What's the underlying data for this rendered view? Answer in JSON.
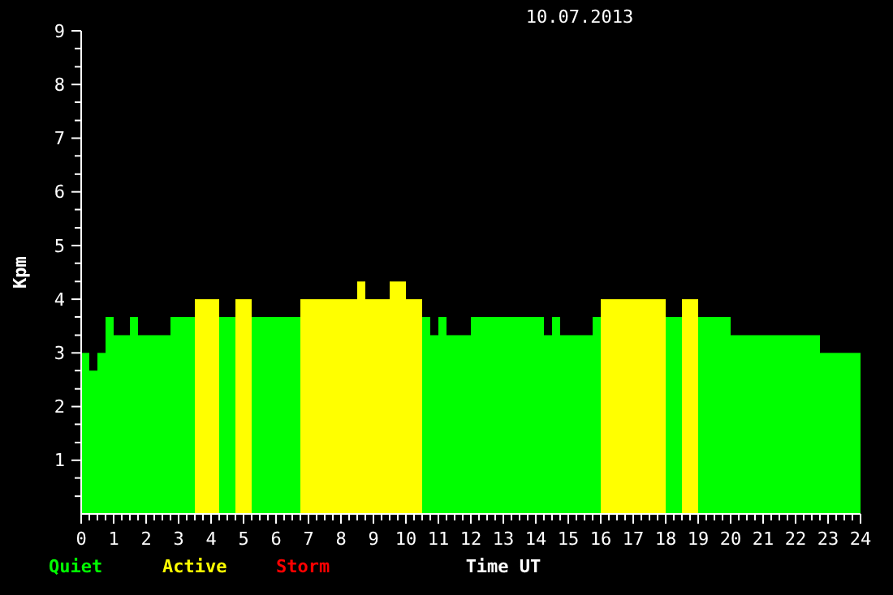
{
  "chart_data": {
    "type": "histogram",
    "title": "10.07.2013",
    "xlabel": "Time UT",
    "ylabel": "Kpm",
    "bins": [
      0,
      0.25,
      0.5,
      0.75,
      1,
      1.5,
      1.75,
      2.75,
      3.5,
      4.25,
      4.75,
      5.25,
      6.75,
      8.5,
      8.75,
      9.5,
      10,
      10.5,
      10.75,
      11,
      11.25,
      12,
      14.25,
      14.5,
      14.75,
      15.75,
      16,
      18,
      18.5,
      19,
      20,
      22.75,
      24
    ],
    "series": [
      {
        "name": "Quiet",
        "color": "#00ff00",
        "values": [
          3,
          2.67,
          3,
          3.67,
          3.33,
          3.67,
          3.33,
          3.67,
          null,
          3.67,
          null,
          3.67,
          null,
          null,
          null,
          null,
          null,
          3.67,
          3.33,
          3.67,
          3.33,
          3.67,
          3.33,
          3.67,
          3.33,
          3.67,
          null,
          3.67,
          null,
          3.67,
          3.33,
          3
        ]
      },
      {
        "name": "Active",
        "color": "#ffff00",
        "values": [
          null,
          null,
          null,
          null,
          null,
          null,
          null,
          null,
          4,
          null,
          4,
          null,
          4,
          4.33,
          4,
          4.33,
          4,
          null,
          null,
          null,
          null,
          null,
          null,
          null,
          null,
          null,
          4,
          null,
          4,
          null,
          null,
          null
        ]
      }
    ],
    "annotations": [
      "Storm"
    ],
    "xlim": [
      0,
      24
    ],
    "xticks": [
      0,
      {
        "value": 0.25,
        "label": null
      },
      {
        "value": 0.5,
        "label": null
      },
      {
        "value": 0.75,
        "label": null
      },
      1,
      {
        "value": 1.25,
        "label": null
      },
      {
        "value": 1.5,
        "label": null
      },
      {
        "value": 1.75,
        "label": null
      },
      2,
      {
        "value": 2.25,
        "label": null
      },
      {
        "value": 2.5,
        "label": null
      },
      {
        "value": 2.75,
        "label": null
      },
      3,
      {
        "value": 3.25,
        "label": null
      },
      {
        "value": 3.5,
        "label": null
      },
      {
        "value": 3.75,
        "label": null
      },
      4,
      {
        "value": 4.25,
        "label": null
      },
      {
        "value": 4.5,
        "label": null
      },
      {
        "value": 4.75,
        "label": null
      },
      5,
      {
        "value": 5.25,
        "label": null
      },
      {
        "value": 5.5,
        "label": null
      },
      {
        "value": 5.75,
        "label": null
      },
      6,
      {
        "value": 6.25,
        "label": null
      },
      {
        "value": 6.5,
        "label": null
      },
      {
        "value": 6.75,
        "label": null
      },
      7,
      {
        "value": 7.25,
        "label": null
      },
      {
        "value": 7.5,
        "label": null
      },
      {
        "value": 7.75,
        "label": null
      },
      8,
      {
        "value": 8.25,
        "label": null
      },
      {
        "value": 8.5,
        "label": null
      },
      {
        "value": 8.75,
        "label": null
      },
      9,
      {
        "value": 9.25,
        "label": null
      },
      {
        "value": 9.5,
        "label": null
      },
      {
        "value": 9.75,
        "label": null
      },
      10,
      {
        "value": 10.25,
        "label": null
      },
      {
        "value": 10.5,
        "label": null
      },
      {
        "value": 10.75,
        "label": null
      },
      11,
      {
        "value": 11.25,
        "label": null
      },
      {
        "value": 11.5,
        "label": null
      },
      {
        "value": 11.75,
        "label": null
      },
      12,
      {
        "value": 12.25,
        "label": null
      },
      {
        "value": 12.5,
        "label": null
      },
      {
        "value": 12.75,
        "label": null
      },
      13,
      {
        "value": 13.25,
        "label": null
      },
      {
        "value": 13.5,
        "label": null
      },
      {
        "value": 13.75,
        "label": null
      },
      14,
      {
        "value": 14.25,
        "label": null
      },
      {
        "value": 14.5,
        "label": null
      },
      {
        "value": 14.75,
        "label": null
      },
      15,
      {
        "value": 15.25,
        "label": null
      },
      {
        "value": 15.5,
        "label": null
      },
      {
        "value": 15.75,
        "label": null
      },
      16,
      {
        "value": 16.25,
        "label": null
      },
      {
        "value": 16.5,
        "label": null
      },
      {
        "value": 16.75,
        "label": null
      },
      17,
      {
        "value": 17.25,
        "label": null
      },
      {
        "value": 17.5,
        "label": null
      },
      {
        "value": 17.75,
        "label": null
      },
      18,
      {
        "value": 18.25,
        "label": null
      },
      {
        "value": 18.5,
        "label": null
      },
      {
        "value": 18.75,
        "label": null
      },
      19,
      {
        "value": 19.25,
        "label": null
      },
      {
        "value": 19.5,
        "label": null
      },
      {
        "value": 19.75,
        "label": null
      },
      20,
      {
        "value": 20.25,
        "label": null
      },
      {
        "value": 20.5,
        "label": null
      },
      {
        "value": 20.75,
        "label": null
      },
      21,
      {
        "value": 21.25,
        "label": null
      },
      {
        "value": 21.5,
        "label": null
      },
      {
        "value": 21.75,
        "label": null
      },
      22,
      {
        "value": 22.25,
        "label": null
      },
      {
        "value": 22.5,
        "label": null
      },
      {
        "value": 22.75,
        "label": null
      },
      23,
      {
        "value": 23.25,
        "label": null
      },
      {
        "value": 23.5,
        "label": null
      },
      {
        "value": 23.75,
        "label": null
      },
      24
    ],
    "ylim": [
      0,
      9
    ],
    "yticks": [
      {
        "value": 0.33,
        "label": null
      },
      {
        "value": 0.67,
        "label": null
      },
      1,
      {
        "value": 1.33,
        "label": null
      },
      {
        "value": 1.67,
        "label": null
      },
      2,
      {
        "value": 2.33,
        "label": null
      },
      {
        "value": 2.67,
        "label": null
      },
      3,
      {
        "value": 3.33,
        "label": null
      },
      {
        "value": 3.67,
        "label": null
      },
      4,
      {
        "value": 4.33,
        "label": null
      },
      {
        "value": 4.67,
        "label": null
      },
      5,
      {
        "value": 5.33,
        "label": null
      },
      {
        "value": 5.67,
        "label": null
      },
      6,
      {
        "value": 6.33,
        "label": null
      },
      {
        "value": 6.67,
        "label": null
      },
      7,
      {
        "value": 7.33,
        "label": null
      },
      {
        "value": 7.67,
        "label": null
      },
      8,
      {
        "value": 8.33,
        "label": null
      },
      {
        "value": 8.67,
        "label": null
      },
      9
    ],
    "legend": "bottom left"
  }
}
